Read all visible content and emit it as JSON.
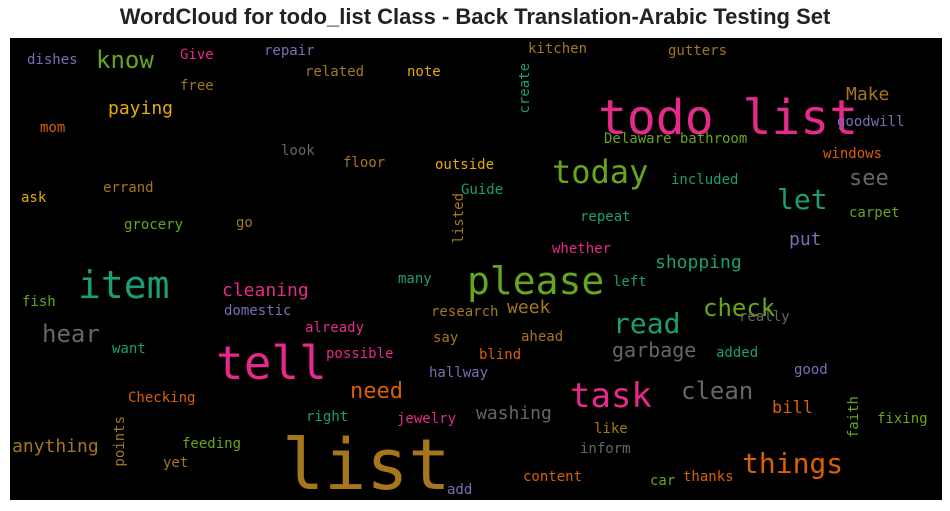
{
  "title": "WordCloud for todo_list Class - Back Translation-Arabic Testing Set",
  "chart_data": {
    "type": "wordcloud",
    "background": "#000000",
    "words": [
      {
        "text": "todo list",
        "color": "#e7298a"
      },
      {
        "text": "list",
        "color": "#a6761d"
      },
      {
        "text": "tell",
        "color": "#e7298a"
      },
      {
        "text": "item",
        "color": "#1b9e77"
      },
      {
        "text": "please",
        "color": "#66a61e"
      },
      {
        "text": "task",
        "color": "#e7298a"
      },
      {
        "text": "today",
        "color": "#66a61e"
      },
      {
        "text": "read",
        "color": "#1b9e77"
      },
      {
        "text": "let",
        "color": "#1b9e77"
      },
      {
        "text": "things",
        "color": "#d95f02"
      },
      {
        "text": "check",
        "color": "#66a61e"
      },
      {
        "text": "clean",
        "color": "#666666"
      },
      {
        "text": "know",
        "color": "#66a61e"
      },
      {
        "text": "hear",
        "color": "#666666"
      },
      {
        "text": "need",
        "color": "#d95f02"
      },
      {
        "text": "see",
        "color": "#666666"
      },
      {
        "text": "garbage",
        "color": "#666666"
      },
      {
        "text": "washing",
        "color": "#666666"
      },
      {
        "text": "anything",
        "color": "#a6761d"
      },
      {
        "text": "shopping",
        "color": "#1b9e77"
      },
      {
        "text": "cleaning",
        "color": "#e7298a"
      },
      {
        "text": "paying",
        "color": "#e6ab02"
      },
      {
        "text": "Make",
        "color": "#a6761d"
      },
      {
        "text": "put",
        "color": "#7570b3"
      },
      {
        "text": "week",
        "color": "#a6761d"
      },
      {
        "text": "bill",
        "color": "#d95f02"
      },
      {
        "text": "Delaware bathroom",
        "color": "#66a61e"
      },
      {
        "text": "dishes",
        "color": "#7570b3"
      },
      {
        "text": "Give",
        "color": "#e7298a"
      },
      {
        "text": "repair",
        "color": "#7570b3"
      },
      {
        "text": "kitchen",
        "color": "#a6761d"
      },
      {
        "text": "gutters",
        "color": "#a6761d"
      },
      {
        "text": "related",
        "color": "#a6761d"
      },
      {
        "text": "note",
        "color": "#e6ab02"
      },
      {
        "text": "create",
        "color": "#1b9e77"
      },
      {
        "text": "free",
        "color": "#a6761d"
      },
      {
        "text": "mom",
        "color": "#d95f02"
      },
      {
        "text": "goodwill",
        "color": "#7570b3"
      },
      {
        "text": "look",
        "color": "#666666"
      },
      {
        "text": "floor",
        "color": "#a6761d"
      },
      {
        "text": "outside",
        "color": "#e6ab02"
      },
      {
        "text": "windows",
        "color": "#d95f02"
      },
      {
        "text": "errand",
        "color": "#a6761d"
      },
      {
        "text": "Guide",
        "color": "#1b9e77"
      },
      {
        "text": "included",
        "color": "#1b9e77"
      },
      {
        "text": "ask",
        "color": "#e6ab02"
      },
      {
        "text": "listed",
        "color": "#a6761d"
      },
      {
        "text": "carpet",
        "color": "#66a61e"
      },
      {
        "text": "grocery",
        "color": "#66a61e"
      },
      {
        "text": "go",
        "color": "#a6761d"
      },
      {
        "text": "repeat",
        "color": "#1b9e77"
      },
      {
        "text": "whether",
        "color": "#e7298a"
      },
      {
        "text": "many",
        "color": "#1b9e77"
      },
      {
        "text": "left",
        "color": "#1b9e77"
      },
      {
        "text": "fish",
        "color": "#66a61e"
      },
      {
        "text": "domestic",
        "color": "#7570b3"
      },
      {
        "text": "research",
        "color": "#a6761d"
      },
      {
        "text": "really",
        "color": "#666666"
      },
      {
        "text": "already",
        "color": "#e7298a"
      },
      {
        "text": "want",
        "color": "#1b9e77"
      },
      {
        "text": "say",
        "color": "#a6761d"
      },
      {
        "text": "ahead",
        "color": "#a6761d"
      },
      {
        "text": "possible",
        "color": "#e7298a"
      },
      {
        "text": "blind",
        "color": "#d95f02"
      },
      {
        "text": "added",
        "color": "#1b9e77"
      },
      {
        "text": "hallway",
        "color": "#7570b3"
      },
      {
        "text": "good",
        "color": "#7570b3"
      },
      {
        "text": "Checking",
        "color": "#d95f02"
      },
      {
        "text": "right",
        "color": "#1b9e77"
      },
      {
        "text": "jewelry",
        "color": "#e7298a"
      },
      {
        "text": "faith",
        "color": "#66a61e"
      },
      {
        "text": "fixing",
        "color": "#66a61e"
      },
      {
        "text": "points",
        "color": "#a6761d"
      },
      {
        "text": "feeding",
        "color": "#66a61e"
      },
      {
        "text": "like",
        "color": "#a6761d"
      },
      {
        "text": "yet",
        "color": "#a6761d"
      },
      {
        "text": "inform",
        "color": "#666666"
      },
      {
        "text": "content",
        "color": "#d95f02"
      },
      {
        "text": "car",
        "color": "#66a61e"
      },
      {
        "text": "thanks",
        "color": "#d95f02"
      },
      {
        "text": "add",
        "color": "#7570b3"
      }
    ]
  }
}
